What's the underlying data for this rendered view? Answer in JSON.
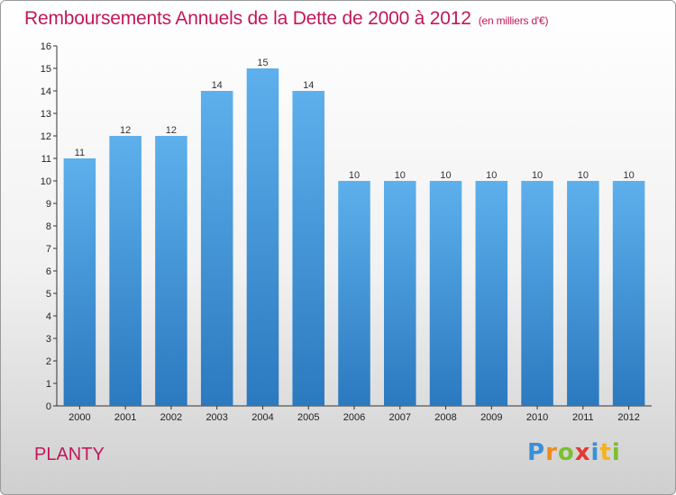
{
  "title": "Remboursements Annuels de la Dette de 2000 à 2012",
  "subtitle": "(en milliers d'€)",
  "city": "PLANTY",
  "brand": {
    "letters": [
      "P",
      "r",
      "o",
      "x",
      "i",
      "t",
      "i"
    ],
    "colors": [
      "#3b8fd6",
      "#f08a1c",
      "#7cbf2f",
      "#e3392f",
      "#3b8fd6",
      "#f6b21b",
      "#7cbf2f"
    ]
  },
  "colors": {
    "title": "#c2185b",
    "bar_top": "#5db0ec",
    "bar_bottom": "#2b79bf"
  },
  "chart_data": {
    "type": "bar",
    "title": "Remboursements Annuels de la Dette de 2000 à 2012",
    "subtitle": "(en milliers d'€)",
    "categories": [
      "2000",
      "2001",
      "2002",
      "2003",
      "2004",
      "2005",
      "2006",
      "2007",
      "2008",
      "2009",
      "2010",
      "2011",
      "2012"
    ],
    "values": [
      11,
      12,
      12,
      14,
      15,
      14,
      10,
      10,
      10,
      10,
      10,
      10,
      10
    ],
    "ylim": [
      0,
      16
    ],
    "yticks": [
      "0",
      "1",
      "2",
      "3",
      "4",
      "5",
      "6",
      "7",
      "8",
      "9",
      "10",
      "11",
      "12",
      "13",
      "14",
      "15",
      "16"
    ],
    "grid": false,
    "data_labels": true
  }
}
